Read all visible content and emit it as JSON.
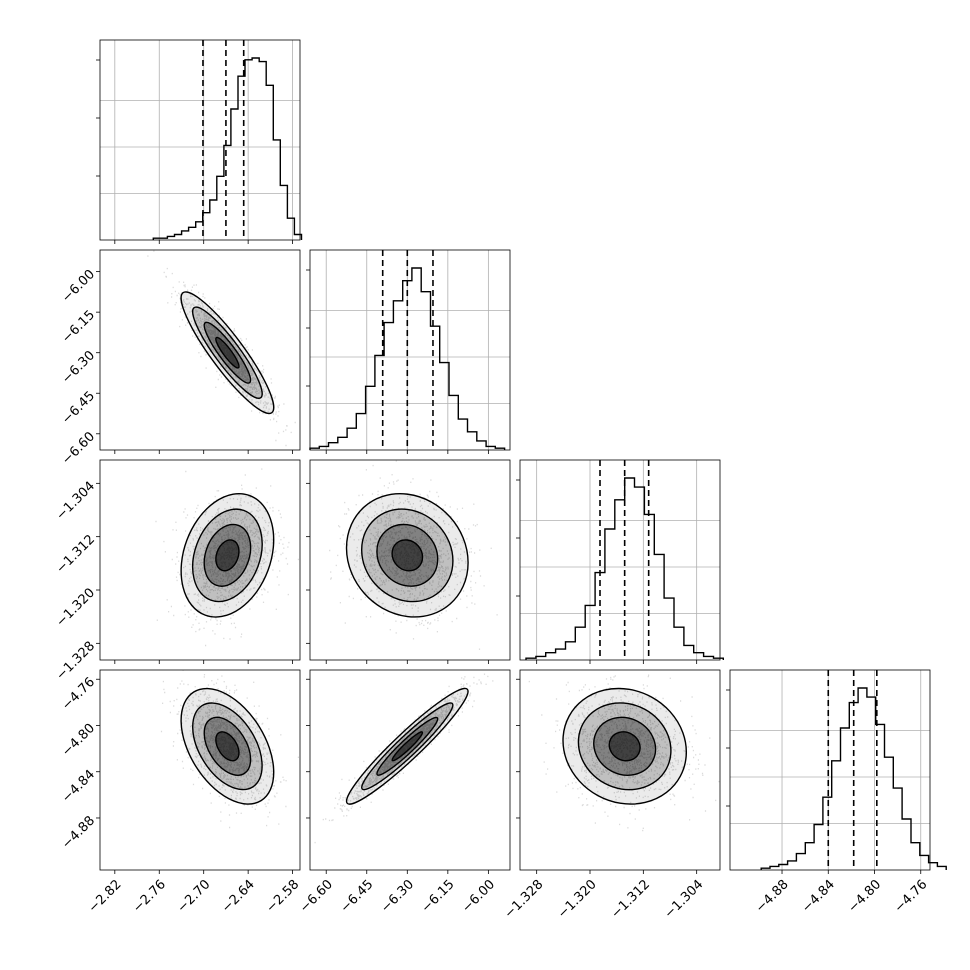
{
  "chart_data": {
    "type": "corner",
    "parameters": [
      {
        "lim": [
          -2.84,
          -2.57
        ],
        "ticks": [
          "−2.82",
          "−2.76",
          "−2.70",
          "−2.64",
          "−2.58"
        ],
        "tick_values": [
          -2.82,
          -2.76,
          -2.7,
          -2.64,
          -2.58
        ],
        "quantiles": [
          -2.701,
          -2.67,
          -2.646
        ],
        "mean": -2.668,
        "std": 0.025,
        "hist_values": [
          1,
          1,
          2,
          3,
          5,
          7,
          10,
          15,
          22,
          35,
          52,
          72,
          90,
          99,
          100,
          98,
          85,
          55,
          30,
          12,
          3
        ]
      },
      {
        "lim": [
          -6.66,
          -5.92
        ],
        "ticks": [
          "−6.60",
          "−6.45",
          "−6.30",
          "−6.15",
          "−6.00"
        ],
        "tick_values": [
          -6.6,
          -6.45,
          -6.3,
          -6.15,
          -6.0
        ],
        "quantiles": [
          -6.391,
          -6.3,
          -6.205
        ],
        "mean": -6.3,
        "std": 0.09,
        "hist_values": [
          1,
          2,
          4,
          7,
          12,
          20,
          35,
          52,
          70,
          82,
          93,
          100,
          87,
          68,
          48,
          30,
          17,
          10,
          5,
          2,
          1
        ]
      },
      {
        "lim": [
          -1.3305,
          -1.3005
        ],
        "ticks": [
          "−1.328",
          "−1.320",
          "−1.312",
          "−1.304"
        ],
        "tick_values": [
          -1.328,
          -1.32,
          -1.312,
          -1.304
        ],
        "quantiles": [
          -1.3185,
          -1.3148,
          -1.3112
        ],
        "mean": -1.3148,
        "std": 0.0037,
        "hist_values": [
          1,
          2,
          4,
          6,
          10,
          18,
          30,
          48,
          72,
          88,
          100,
          95,
          80,
          58,
          34,
          18,
          8,
          4,
          2,
          1
        ]
      },
      {
        "lim": [
          -4.925,
          -4.752
        ],
        "ticks": [
          "−4.88",
          "−4.84",
          "−4.80",
          "−4.76"
        ],
        "tick_values": [
          -4.88,
          -4.84,
          -4.8,
          -4.76
        ],
        "quantiles": [
          -4.84,
          -4.818,
          -4.798
        ],
        "mean": -4.818,
        "std": 0.02,
        "hist_values": [
          1,
          2,
          3,
          5,
          9,
          15,
          25,
          40,
          60,
          78,
          92,
          100,
          95,
          80,
          62,
          45,
          28,
          15,
          8,
          4,
          2
        ]
      }
    ],
    "axis_labels": [],
    "pairs": [
      {
        "row": 1,
        "col": 0,
        "corr": -0.9
      },
      {
        "row": 2,
        "col": 0,
        "corr": 0.25
      },
      {
        "row": 2,
        "col": 1,
        "corr": -0.12
      },
      {
        "row": 3,
        "col": 0,
        "corr": -0.45
      },
      {
        "row": 3,
        "col": 1,
        "corr": 0.95
      },
      {
        "row": 3,
        "col": 2,
        "corr": -0.1
      }
    ],
    "contour_levels_sigma": [
      0.5,
      1.0,
      1.5,
      2.0
    ],
    "grid": true,
    "colors": {
      "line": "#000000",
      "grid": "#b0b0b0",
      "points": "#999999",
      "density": "#000000"
    }
  }
}
